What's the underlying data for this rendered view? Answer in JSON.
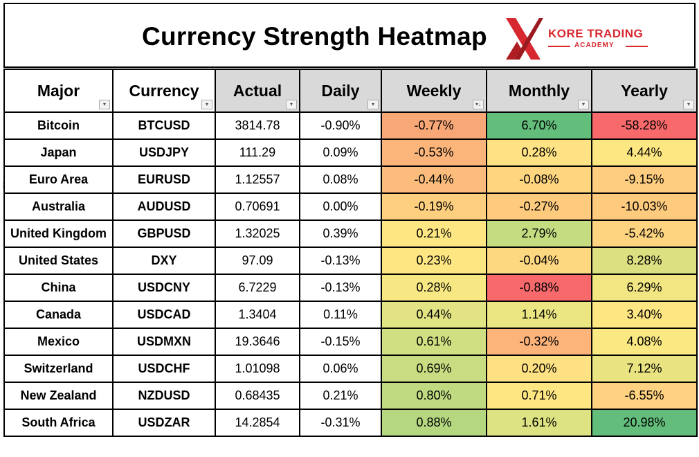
{
  "title": "Currency Strength Heatmap",
  "logo": {
    "name": "KORE TRADING",
    "sub": "ACADEMY",
    "color": "#d7282f"
  },
  "columns": [
    {
      "key": "major",
      "label": "Major",
      "shaded": false,
      "filter": "dropdown-icon"
    },
    {
      "key": "currency",
      "label": "Currency",
      "shaded": false,
      "filter": "dropdown-icon"
    },
    {
      "key": "actual",
      "label": "Actual",
      "shaded": true,
      "filter": "dropdown-icon"
    },
    {
      "key": "daily",
      "label": "Daily",
      "shaded": true,
      "filter": "dropdown-icon"
    },
    {
      "key": "weekly",
      "label": "Weekly",
      "shaded": true,
      "filter": "sort-descending-icon"
    },
    {
      "key": "monthly",
      "label": "Monthly",
      "shaded": true,
      "filter": "dropdown-icon"
    },
    {
      "key": "yearly",
      "label": "Yearly",
      "shaded": true,
      "filter": "dropdown-icon"
    }
  ],
  "rows": [
    {
      "major": "Bitcoin",
      "currency": "BTCUSD",
      "actual": "3814.78",
      "daily": "-0.90%",
      "weekly": "-0.77%",
      "monthly": "6.70%",
      "yearly": "-58.28%",
      "colors": {
        "weekly": "#f8a777",
        "monthly": "#63be7b",
        "yearly": "#f8696b"
      }
    },
    {
      "major": "Japan",
      "currency": "USDJPY",
      "actual": "111.29",
      "daily": "0.09%",
      "weekly": "-0.53%",
      "monthly": "0.28%",
      "yearly": "4.44%",
      "colors": {
        "weekly": "#fbb57b",
        "monthly": "#fee283",
        "yearly": "#fde783"
      }
    },
    {
      "major": "Euro Area",
      "currency": "EURUSD",
      "actual": "1.12557",
      "daily": "0.08%",
      "weekly": "-0.44%",
      "monthly": "-0.08%",
      "yearly": "-9.15%",
      "colors": {
        "weekly": "#fbbc7c",
        "monthly": "#fed680",
        "yearly": "#fecd7f"
      }
    },
    {
      "major": "Australia",
      "currency": "AUDUSD",
      "actual": "0.70691",
      "daily": "0.00%",
      "weekly": "-0.19%",
      "monthly": "-0.27%",
      "yearly": "-10.03%",
      "colors": {
        "weekly": "#fdcf7f",
        "monthly": "#fecb7e",
        "yearly": "#fecb7e"
      }
    },
    {
      "major": "United Kingdom",
      "currency": "GBPUSD",
      "actual": "1.32025",
      "daily": "0.39%",
      "weekly": "0.21%",
      "monthly": "2.79%",
      "yearly": "-5.42%",
      "colors": {
        "weekly": "#fee683",
        "monthly": "#c5dc81",
        "yearly": "#fed480"
      }
    },
    {
      "major": "United States",
      "currency": "DXY",
      "actual": "97.09",
      "daily": "-0.13%",
      "weekly": "0.23%",
      "monthly": "-0.04%",
      "yearly": "8.28%",
      "colors": {
        "weekly": "#fee783",
        "monthly": "#fed881",
        "yearly": "#dce081"
      }
    },
    {
      "major": "China",
      "currency": "USDCNY",
      "actual": "6.7229",
      "daily": "-0.13%",
      "weekly": "0.28%",
      "monthly": "-0.88%",
      "yearly": "6.29%",
      "colors": {
        "weekly": "#f8e883",
        "monthly": "#f8696b",
        "yearly": "#f2e683"
      }
    },
    {
      "major": "Canada",
      "currency": "USDCAD",
      "actual": "1.3404",
      "daily": "0.11%",
      "weekly": "0.44%",
      "monthly": "1.14%",
      "yearly": "3.40%",
      "colors": {
        "weekly": "#e2e383",
        "monthly": "#ebe582",
        "yearly": "#fee683"
      }
    },
    {
      "major": "Mexico",
      "currency": "USDMXN",
      "actual": "19.3646",
      "daily": "-0.15%",
      "weekly": "0.61%",
      "monthly": "-0.32%",
      "yearly": "4.08%",
      "colors": {
        "weekly": "#d0df81",
        "monthly": "#fdb47b",
        "yearly": "#fae883"
      }
    },
    {
      "major": "Switzerland",
      "currency": "USDCHF",
      "actual": "1.01098",
      "daily": "0.06%",
      "weekly": "0.69%",
      "monthly": "0.20%",
      "yearly": "7.12%",
      "colors": {
        "weekly": "#c8dd81",
        "monthly": "#fee183",
        "yearly": "#e9e382"
      }
    },
    {
      "major": "New Zealand",
      "currency": "NZDUSD",
      "actual": "0.68435",
      "daily": "0.21%",
      "weekly": "0.80%",
      "monthly": "0.71%",
      "yearly": "-6.55%",
      "colors": {
        "weekly": "#bfda80",
        "monthly": "#fee783",
        "yearly": "#fed280"
      }
    },
    {
      "major": "South Africa",
      "currency": "USDZAR",
      "actual": "14.2854",
      "daily": "-0.31%",
      "weekly": "0.88%",
      "monthly": "1.61%",
      "yearly": "20.98%",
      "colors": {
        "weekly": "#b4d77f",
        "monthly": "#dde282",
        "yearly": "#63be7b"
      }
    }
  ]
}
